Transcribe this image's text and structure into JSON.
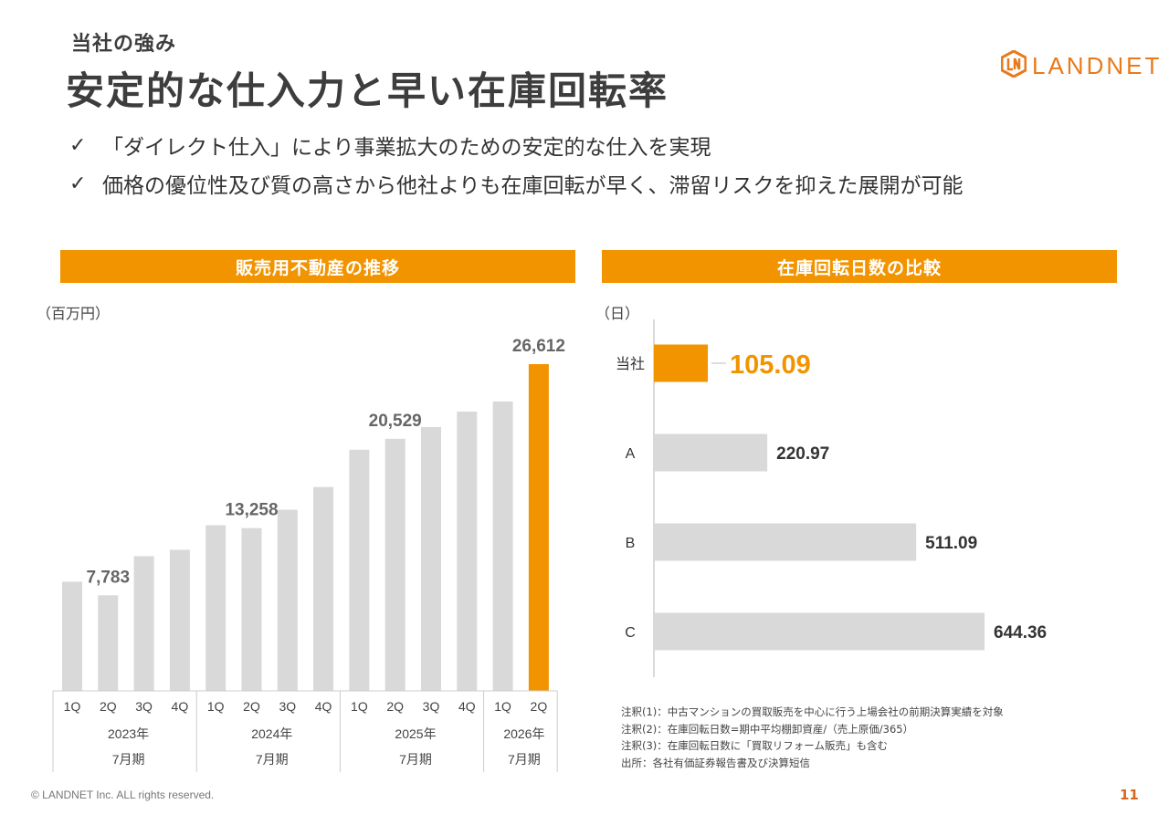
{
  "header": {
    "eyebrow": "当社の強み",
    "title": "安定的な仕入力と早い在庫回転率",
    "logo_text": "LANDNET",
    "logo_icon": "ln-hexagon-logo-icon"
  },
  "bullets": [
    {
      "icon": "check-icon",
      "glyph": "✓",
      "text": "「ダイレクト仕入」により事業拡大のための安定的な仕入を実現"
    },
    {
      "icon": "check-icon",
      "glyph": "✓",
      "text": "価格の優位性及び質の高さから他社よりも在庫回転が早く、滞留リスクを抑えた展開が可能"
    }
  ],
  "colors": {
    "accent": "#f29400",
    "bar_gray": "#d9d9d9",
    "text_dark": "#3d3d3d",
    "brand_orange": "#e87a1a"
  },
  "chart_data": [
    {
      "type": "bar",
      "title": "販売用不動産の推移",
      "unit_label": "（百万円）",
      "categories": [
        "1Q",
        "2Q",
        "3Q",
        "4Q",
        "1Q",
        "2Q",
        "3Q",
        "4Q",
        "1Q",
        "2Q",
        "3Q",
        "4Q",
        "1Q",
        "2Q"
      ],
      "groups": [
        {
          "year": "2023年",
          "period": "7月期",
          "count": 4
        },
        {
          "year": "2024年",
          "period": "7月期",
          "count": 4
        },
        {
          "year": "2025年",
          "period": "7月期",
          "count": 4
        },
        {
          "year": "2026年",
          "period": "7月期",
          "count": 2
        }
      ],
      "values": [
        8890,
        7783,
        10970,
        11490,
        13490,
        13258,
        14750,
        16600,
        19640,
        20529,
        21490,
        22750,
        23570,
        26612
      ],
      "data_labels": [
        {
          "index": 1,
          "text": "7,783"
        },
        {
          "index": 5,
          "text": "13,258"
        },
        {
          "index": 9,
          "text": "20,529"
        },
        {
          "index": 13,
          "text": "26,612"
        }
      ],
      "highlight_index": 13,
      "ylim": [
        0,
        28000
      ],
      "grid": false,
      "xlabel": "",
      "ylabel": "百万円"
    },
    {
      "type": "bar",
      "orientation": "horizontal",
      "title": "在庫回転日数の比較",
      "unit_label": "（日）",
      "categories": [
        "当社",
        "A",
        "B",
        "C"
      ],
      "values": [
        105.09,
        220.97,
        511.09,
        644.36
      ],
      "data_labels": [
        "105.09",
        "220.97",
        "511.09",
        "644.36"
      ],
      "highlight_index": 0,
      "xlim": [
        0,
        700
      ],
      "grid": false,
      "xlabel": "",
      "ylabel": "日"
    }
  ],
  "notes": [
    "注釈(1)：中古マンションの買取販売を中心に行う上場会社の前期決算実績を対象",
    "注釈(2)：在庫回転日数=期中平均棚卸資産/（売上原価/365）",
    "注釈(3)：在庫回転日数に「買取リフォーム販売」も含む",
    "出所：各社有価証券報告書及び決算短信"
  ],
  "footer": {
    "copyright": "© LANDNET Inc. ALL rights reserved.",
    "page_number": "11"
  }
}
